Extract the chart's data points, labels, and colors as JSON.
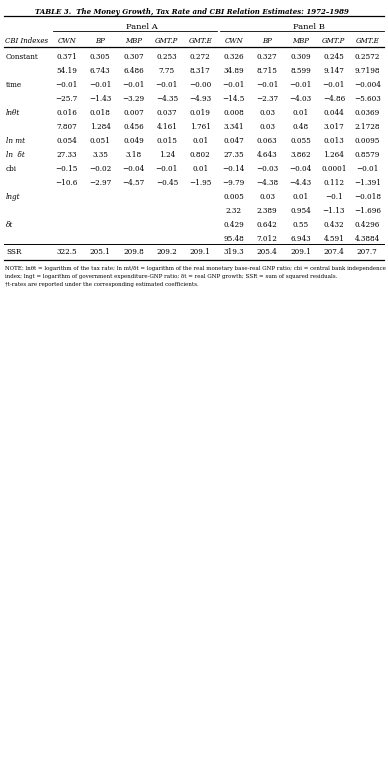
{
  "title": "TABLE 3.  The Money Growth, Tax Rate and CBI Relation Estimates: 1972–1989",
  "panel_a_label": "Panel A",
  "panel_b_label": "Panel B",
  "col_headers": [
    "CBI Indexes",
    "CWN",
    "BP",
    "MBP",
    "GMT.P",
    "GMT.E",
    "CWN",
    "BP",
    "MBP",
    "GMT.P",
    "GMT.E"
  ],
  "rows": [
    [
      "Constant",
      "0.371",
      "0.305",
      "0.307",
      "0.253",
      "0.272",
      "0.326",
      "0.327",
      "0.309",
      "0.245",
      "0.2572"
    ],
    [
      "",
      "54.19",
      "6.743",
      "6.486",
      "7.75",
      "8.317",
      "34.89",
      "8.715",
      "8.599",
      "9.147",
      "9.7198"
    ],
    [
      "time",
      "−0.01",
      "−0.01",
      "−0.01",
      "−0.01",
      "−0.00",
      "−0.01",
      "−0.01",
      "−0.01",
      "−0.01",
      "−0.004"
    ],
    [
      "",
      "−25.7",
      "−1.43",
      "−3.29",
      "−4.35",
      "−4.93",
      "−14.5",
      "−2.37",
      "−4.03",
      "−4.86",
      "−5.603"
    ],
    [
      "lnθt",
      "0.016",
      "0.018",
      "0.007",
      "0.037",
      "0.019",
      "0.008",
      "0.03",
      "0.01",
      "0.044",
      "0.0369"
    ],
    [
      "",
      "7.807",
      "1.284",
      "0.456",
      "4.161",
      "1.761",
      "3.341",
      "0.03",
      "0.48",
      "3.017",
      "2.1728"
    ],
    [
      "ln mt",
      "0.054",
      "0.051",
      "0.049",
      "0.015",
      "0.01",
      "0.047",
      "0.063",
      "0.055",
      "0.013",
      "0.0095"
    ],
    [
      "ln  ẟt",
      "27.33",
      "3.35",
      "3.18",
      "1.24",
      "0.802",
      "27.35",
      "4.643",
      "3.862",
      "1.264",
      "0.8579"
    ],
    [
      "cbi",
      "−0.15",
      "−0.02",
      "−0.04",
      "−0.01",
      "0.01",
      "−0.14",
      "−0.03",
      "−0.04",
      "0.0001",
      "−0.01"
    ],
    [
      "",
      "−10.6",
      "−2.97",
      "−4.57",
      "−0.45",
      "−1.95",
      "−9.79",
      "−4.38",
      "−4.43",
      "0.112",
      "−1.391"
    ],
    [
      "lngt",
      "",
      "",
      "",
      "",
      "",
      "0.005",
      "0.03",
      "0.01",
      "−0.1",
      "−0.018"
    ],
    [
      "",
      "",
      "",
      "",
      "",
      "",
      "2.32",
      "2.389",
      "0.954",
      "−1.13",
      "−1.696"
    ],
    [
      "ẟt",
      "",
      "",
      "",
      "",
      "",
      "0.429",
      "0.642",
      "0.55",
      "0.432",
      "0.4296"
    ],
    [
      "",
      "",
      "",
      "",
      "",
      "",
      "95.48",
      "7.012",
      "6.943",
      "4.591",
      "4.3884"
    ],
    [
      "SSR",
      "322.5",
      "205.1",
      "209.8",
      "209.2",
      "209.1",
      "319.3",
      "205.4",
      "209.1",
      "207.4",
      "207.7"
    ]
  ],
  "row_label_italic": [
    false,
    false,
    false,
    false,
    true,
    false,
    true,
    true,
    false,
    false,
    true,
    false,
    true,
    false,
    false
  ],
  "note_line1": "NOTE: lnθt = logarithm of the tax rate; ln mt/ẟt = logarithm of the real monetary base-real GNP ratio; cbi = central bank independence",
  "note_line2": "index; lngt = logarithm of government expenditure-GNP ratio; ẟt = real GNP growth; SSR = sum of squared residuals.",
  "note_line3": "†t-rates are reported under the corresponding estimated coefficients.",
  "bg_color": "#ffffff"
}
